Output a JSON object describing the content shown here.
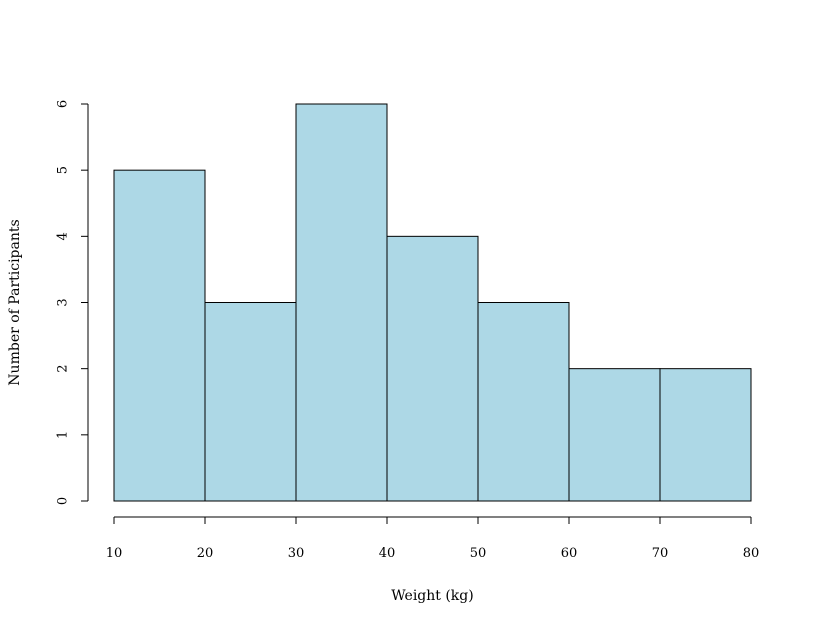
{
  "chart_data": {
    "type": "bar",
    "title": "",
    "xlabel": "Weight (kg)",
    "ylabel": "Number of Participants",
    "bins": [
      [
        10,
        20
      ],
      [
        20,
        30
      ],
      [
        30,
        40
      ],
      [
        40,
        50
      ],
      [
        50,
        60
      ],
      [
        60,
        70
      ],
      [
        70,
        80
      ]
    ],
    "values": [
      5,
      3,
      6,
      4,
      3,
      2,
      2
    ],
    "x_ticks": [
      10,
      20,
      30,
      40,
      50,
      60,
      70,
      80
    ],
    "y_ticks": [
      0,
      1,
      2,
      3,
      4,
      5,
      6
    ],
    "xlim": [
      10,
      80
    ],
    "ylim": [
      0,
      6
    ],
    "grid": false,
    "bar_color": "#ADD8E6",
    "edge_color": "#000000"
  }
}
